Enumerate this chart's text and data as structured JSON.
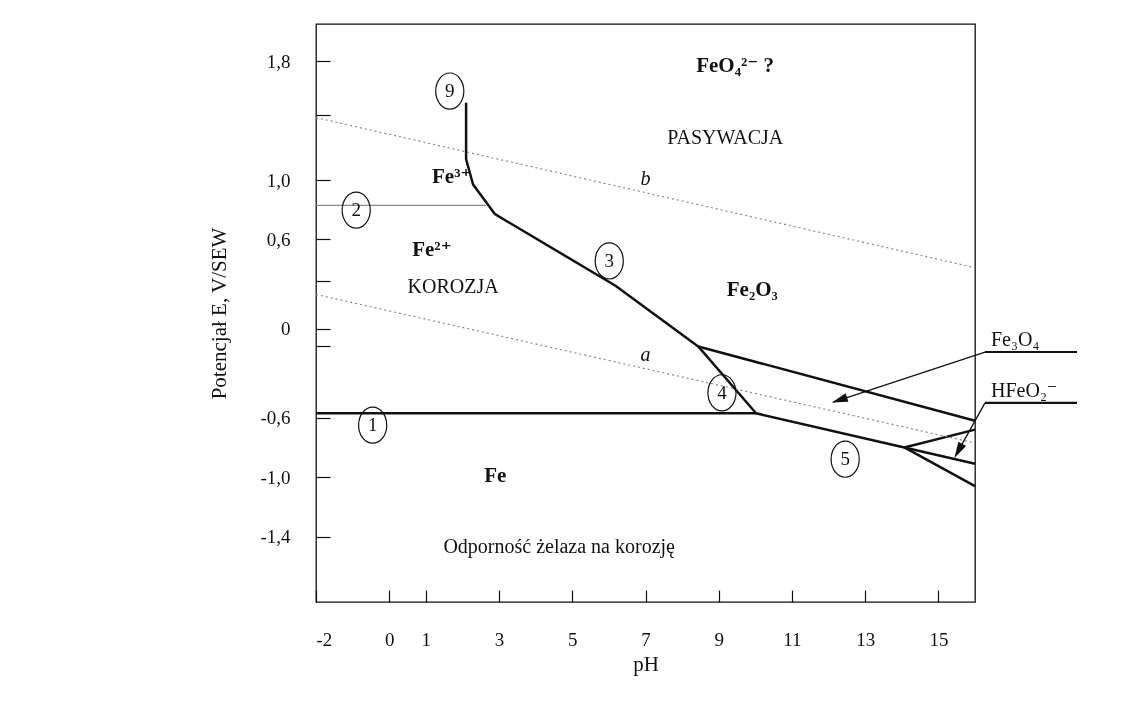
{
  "chart_data": {
    "type": "line",
    "xlabel": "pH",
    "ylabel": "Potencjał E,  V/SEW",
    "xlim": [
      -2,
      16
    ],
    "ylim": [
      -1.84,
      2.05
    ],
    "xticks": [
      -2,
      0,
      1,
      3,
      5,
      7,
      9,
      11,
      13,
      15
    ],
    "yticks": [
      {
        "value": 1.8,
        "label": "1,8"
      },
      {
        "value": 1.44,
        "label": null
      },
      {
        "value": 1.0,
        "label": "1,0"
      },
      {
        "value": 0.6,
        "label": "0,6"
      },
      {
        "value": 0.32,
        "label": null
      },
      0,
      {
        "value": -0.12,
        "label": null
      },
      {
        "value": -0.6,
        "label": "-0,6"
      },
      {
        "value": -1.0,
        "label": "-1,0"
      },
      {
        "value": -1.4,
        "label": "-1,4"
      }
    ],
    "grid": false,
    "series": [
      {
        "color": "#111111",
        "x": [
          2.1,
          2.1,
          2.29,
          2.89,
          6.17,
          8.44,
          10.02,
          14.07,
          16
        ],
        "values": [
          1.52,
          1.14,
          0.97,
          0.77,
          0.29,
          -0.12,
          -0.57,
          -0.8,
          -1.06
        ]
      },
      {
        "color": "#111111",
        "x": [
          -2,
          10.02
        ],
        "values": [
          -0.57,
          -0.57
        ]
      },
      {
        "color": "#111111",
        "x": [
          8.44,
          16
        ],
        "values": [
          -0.12,
          -0.62
        ]
      },
      {
        "color": "#111111",
        "x": [
          14.07,
          16
        ],
        "values": [
          -0.8,
          -0.68
        ]
      },
      {
        "color": "#111111",
        "x": [
          14.07,
          16
        ],
        "values": [
          -0.8,
          -0.91
        ]
      },
      {
        "color": "#888888",
        "x": [
          -2,
          2.64
        ],
        "values": [
          0.83,
          0.83
        ]
      },
      {
        "name": "a",
        "color": "#888888",
        "line_style": "dotted",
        "x": [
          -2,
          16
        ],
        "values": [
          0.23,
          -0.77
        ]
      },
      {
        "name": "b",
        "color": "#888888",
        "line_style": "dotted",
        "x": [
          -2,
          16
        ],
        "values": [
          1.42,
          0.41
        ]
      }
    ],
    "annotations": [
      "9",
      "2",
      "3",
      "4",
      "1",
      "5",
      "FeO₄²⁻  ?",
      "PASYWACJA",
      "Fe³⁺",
      "Fe²⁺",
      "KOROZJA",
      "Fe₂O₃",
      "Fe",
      "Odporność żelaza na korozję",
      "Fe₃O₄",
      "HFeO₂⁻"
    ]
  }
}
